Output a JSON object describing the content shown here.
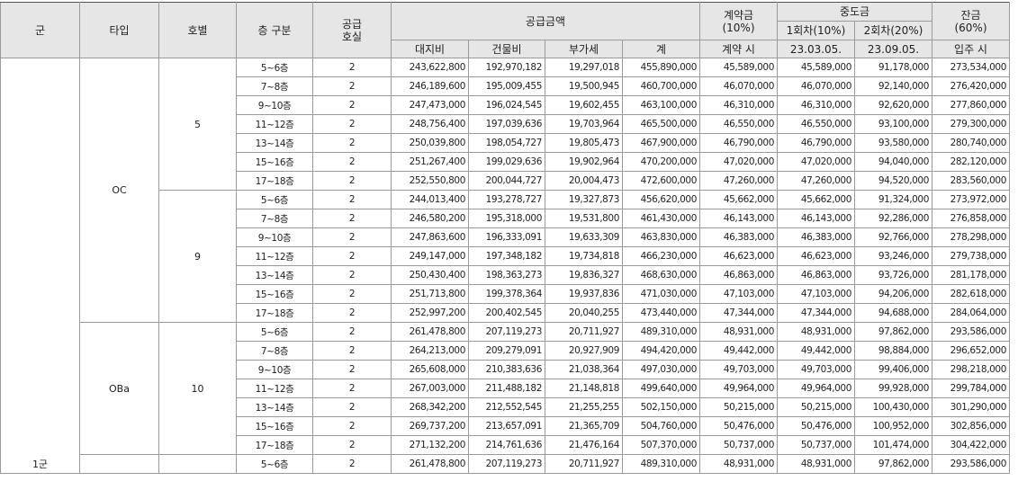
{
  "headers": {
    "group": "군",
    "type": "타입",
    "unit": "호별",
    "floor": "층 구분",
    "supply_units_l1": "공급",
    "supply_units_l2": "호실",
    "supply_price": "공급금액",
    "land": "대지비",
    "building": "건물비",
    "vat": "부가세",
    "total": "계",
    "contract_l1": "계약금",
    "contract_l2": "(10%)",
    "contract_when": "계약 시",
    "middle": "중도금",
    "middle1": "1회차(10%)",
    "middle1_date": "23.03.05.",
    "middle2": "2회차(20%)",
    "middle2_date": "23.09.05.",
    "balance_l1": "잔금",
    "balance_l2": "(60%)",
    "balance_when": "입주 시"
  },
  "group_label": "1군",
  "types": [
    {
      "type": "OC",
      "units": [
        {
          "unit": "5",
          "rows": [
            {
              "floor": "5~6층",
              "count": "2",
              "land": "243,622,800",
              "building": "192,970,182",
              "vat": "19,297,018",
              "total": "455,890,000",
              "contract": "45,589,000",
              "mid1": "45,589,000",
              "mid2": "91,178,000",
              "balance": "273,534,000"
            },
            {
              "floor": "7~8층",
              "count": "2",
              "land": "246,189,600",
              "building": "195,009,455",
              "vat": "19,500,945",
              "total": "460,700,000",
              "contract": "46,070,000",
              "mid1": "46,070,000",
              "mid2": "92,140,000",
              "balance": "276,420,000"
            },
            {
              "floor": "9~10층",
              "count": "2",
              "land": "247,473,000",
              "building": "196,024,545",
              "vat": "19,602,455",
              "total": "463,100,000",
              "contract": "46,310,000",
              "mid1": "46,310,000",
              "mid2": "92,620,000",
              "balance": "277,860,000"
            },
            {
              "floor": "11~12층",
              "count": "2",
              "land": "248,756,400",
              "building": "197,039,636",
              "vat": "19,703,964",
              "total": "465,500,000",
              "contract": "46,550,000",
              "mid1": "46,550,000",
              "mid2": "93,100,000",
              "balance": "279,300,000"
            },
            {
              "floor": "13~14층",
              "count": "2",
              "land": "250,039,800",
              "building": "198,054,727",
              "vat": "19,805,473",
              "total": "467,900,000",
              "contract": "46,790,000",
              "mid1": "46,790,000",
              "mid2": "93,580,000",
              "balance": "280,740,000"
            },
            {
              "floor": "15~16층",
              "count": "2",
              "land": "251,267,400",
              "building": "199,029,636",
              "vat": "19,902,964",
              "total": "470,200,000",
              "contract": "47,020,000",
              "mid1": "47,020,000",
              "mid2": "94,040,000",
              "balance": "282,120,000"
            },
            {
              "floor": "17~18층",
              "count": "2",
              "land": "252,550,800",
              "building": "200,044,727",
              "vat": "20,004,473",
              "total": "472,600,000",
              "contract": "47,260,000",
              "mid1": "47,260,000",
              "mid2": "94,520,000",
              "balance": "283,560,000"
            }
          ]
        },
        {
          "unit": "9",
          "rows": [
            {
              "floor": "5~6층",
              "count": "2",
              "land": "244,013,400",
              "building": "193,278,727",
              "vat": "19,327,873",
              "total": "456,620,000",
              "contract": "45,662,000",
              "mid1": "45,662,000",
              "mid2": "91,324,000",
              "balance": "273,972,000"
            },
            {
              "floor": "7~8층",
              "count": "2",
              "land": "246,580,200",
              "building": "195,318,000",
              "vat": "19,531,800",
              "total": "461,430,000",
              "contract": "46,143,000",
              "mid1": "46,143,000",
              "mid2": "92,286,000",
              "balance": "276,858,000"
            },
            {
              "floor": "9~10층",
              "count": "2",
              "land": "247,863,600",
              "building": "196,333,091",
              "vat": "19,633,309",
              "total": "463,830,000",
              "contract": "46,383,000",
              "mid1": "46,383,000",
              "mid2": "92,766,000",
              "balance": "278,298,000"
            },
            {
              "floor": "11~12층",
              "count": "2",
              "land": "249,147,000",
              "building": "197,348,182",
              "vat": "19,734,818",
              "total": "466,230,000",
              "contract": "46,623,000",
              "mid1": "46,623,000",
              "mid2": "93,246,000",
              "balance": "279,738,000"
            },
            {
              "floor": "13~14층",
              "count": "2",
              "land": "250,430,400",
              "building": "198,363,273",
              "vat": "19,836,327",
              "total": "468,630,000",
              "contract": "46,863,000",
              "mid1": "46,863,000",
              "mid2": "93,726,000",
              "balance": "281,178,000"
            },
            {
              "floor": "15~16층",
              "count": "2",
              "land": "251,713,800",
              "building": "199,378,364",
              "vat": "19,937,836",
              "total": "471,030,000",
              "contract": "47,103,000",
              "mid1": "47,103,000",
              "mid2": "94,206,000",
              "balance": "282,618,000"
            },
            {
              "floor": "17~18층",
              "count": "2",
              "land": "252,997,200",
              "building": "200,402,545",
              "vat": "20,040,255",
              "total": "473,440,000",
              "contract": "47,344,000",
              "mid1": "47,344,000",
              "mid2": "94,688,000",
              "balance": "284,064,000"
            }
          ]
        }
      ]
    },
    {
      "type": "OBa",
      "units": [
        {
          "unit": "10",
          "rows": [
            {
              "floor": "5~6층",
              "count": "2",
              "land": "261,478,800",
              "building": "207,119,273",
              "vat": "20,711,927",
              "total": "489,310,000",
              "contract": "48,931,000",
              "mid1": "48,931,000",
              "mid2": "97,862,000",
              "balance": "293,586,000"
            },
            {
              "floor": "7~8층",
              "count": "2",
              "land": "264,213,000",
              "building": "209,279,091",
              "vat": "20,927,909",
              "total": "494,420,000",
              "contract": "49,442,000",
              "mid1": "49,442,000",
              "mid2": "98,884,000",
              "balance": "296,652,000"
            },
            {
              "floor": "9~10층",
              "count": "2",
              "land": "265,608,000",
              "building": "210,383,636",
              "vat": "21,038,364",
              "total": "497,030,000",
              "contract": "49,703,000",
              "mid1": "49,703,000",
              "mid2": "99,406,000",
              "balance": "298,218,000"
            },
            {
              "floor": "11~12층",
              "count": "2",
              "land": "267,003,000",
              "building": "211,488,182",
              "vat": "21,148,818",
              "total": "499,640,000",
              "contract": "49,964,000",
              "mid1": "49,964,000",
              "mid2": "99,928,000",
              "balance": "299,784,000"
            },
            {
              "floor": "13~14층",
              "count": "2",
              "land": "268,342,200",
              "building": "212,552,545",
              "vat": "21,255,255",
              "total": "502,150,000",
              "contract": "50,215,000",
              "mid1": "50,215,000",
              "mid2": "100,430,000",
              "balance": "301,290,000"
            },
            {
              "floor": "15~16층",
              "count": "2",
              "land": "269,737,200",
              "building": "213,657,091",
              "vat": "21,365,709",
              "total": "504,760,000",
              "contract": "50,476,000",
              "mid1": "50,476,000",
              "mid2": "100,952,000",
              "balance": "302,856,000"
            },
            {
              "floor": "17~18층",
              "count": "2",
              "land": "271,132,200",
              "building": "214,761,636",
              "vat": "21,476,164",
              "total": "507,370,000",
              "contract": "50,737,000",
              "mid1": "50,737,000",
              "mid2": "101,474,000",
              "balance": "304,422,000"
            }
          ]
        }
      ]
    },
    {
      "type": "",
      "units": [
        {
          "unit": "",
          "rows": [
            {
              "floor": "5~6층",
              "count": "2",
              "land": "261,478,800",
              "building": "207,119,273",
              "vat": "20,711,927",
              "total": "489,310,000",
              "contract": "48,931,000",
              "mid1": "48,931,000",
              "mid2": "97,862,000",
              "balance": "293,586,000"
            }
          ]
        }
      ]
    }
  ]
}
